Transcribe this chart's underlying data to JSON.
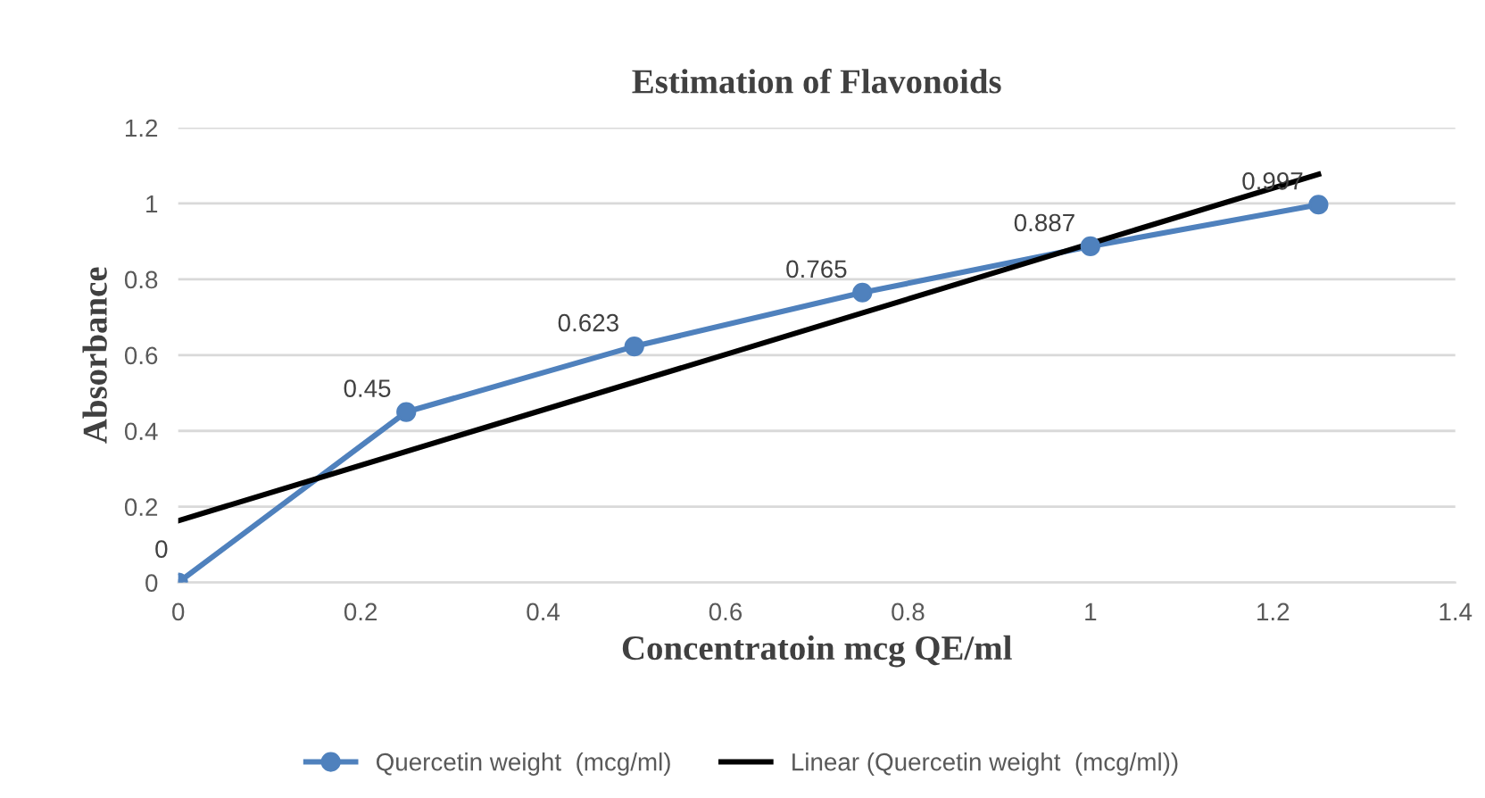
{
  "chart_data": {
    "type": "line",
    "title": "Estimation of Flavonoids",
    "xlabel": "Concentratoin mcg QE/ml",
    "ylabel": "Absorbance",
    "series": [
      {
        "name": "Quercetin weight  (mcg/ml)",
        "color": "#4f81bd",
        "marker": "circle",
        "x": [
          0,
          0.25,
          0.5,
          0.75,
          1,
          1.25
        ],
        "values": [
          0,
          0.45,
          0.623,
          0.765,
          0.887,
          0.997
        ],
        "value_labels": [
          "0",
          "0.45",
          "0.623",
          "0.765",
          "0.887",
          "0.997"
        ]
      },
      {
        "name": "Linear (Quercetin weight  (mcg/ml))",
        "color": "#000000",
        "marker": "none",
        "x": [
          0,
          1.25
        ],
        "values": [
          0.163,
          1.077
        ]
      }
    ],
    "xlim": [
      0,
      1.4
    ],
    "xticks": [
      0,
      0.2,
      0.4,
      0.6,
      0.8,
      1,
      1.2,
      1.4
    ],
    "ylim": [
      0,
      1.2
    ],
    "yticks": [
      0,
      0.2,
      0.4,
      0.6,
      0.8,
      1,
      1.2
    ],
    "grid": "y",
    "legend": "bottom"
  }
}
